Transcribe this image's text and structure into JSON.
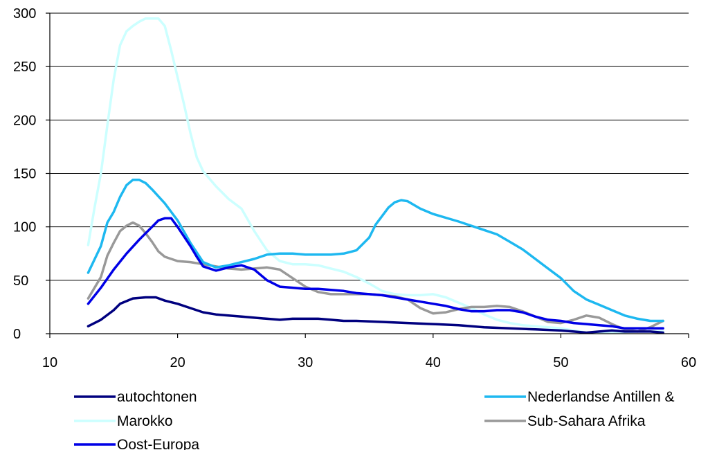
{
  "chart_data": {
    "type": "line",
    "title": "",
    "xlabel": "",
    "ylabel": "",
    "xlim": [
      10,
      60
    ],
    "ylim": [
      0,
      300
    ],
    "x_ticks": [
      10,
      20,
      30,
      40,
      50,
      60
    ],
    "y_ticks": [
      0,
      50,
      100,
      150,
      200,
      250,
      300
    ],
    "x_tick_labels": [
      "10",
      "20",
      "30",
      "40",
      "50",
      "60"
    ],
    "y_tick_labels": [
      "0",
      "50",
      "100",
      "150",
      "200",
      "250",
      "300"
    ],
    "grid": "horizontal",
    "legend_position": "bottom",
    "series": [
      {
        "name": "autochtonen",
        "color": "#00007f",
        "points": [
          [
            13,
            7
          ],
          [
            14,
            13
          ],
          [
            15,
            22
          ],
          [
            15.5,
            28
          ],
          [
            16.5,
            33
          ],
          [
            17.5,
            34
          ],
          [
            18.3,
            34
          ],
          [
            19,
            31
          ],
          [
            20,
            28
          ],
          [
            21,
            24
          ],
          [
            22,
            20
          ],
          [
            23,
            18
          ],
          [
            24,
            17
          ],
          [
            25,
            16
          ],
          [
            26,
            15
          ],
          [
            27,
            14
          ],
          [
            28,
            13
          ],
          [
            29,
            14
          ],
          [
            30,
            14
          ],
          [
            31,
            14
          ],
          [
            32,
            13
          ],
          [
            33,
            12
          ],
          [
            34,
            12
          ],
          [
            36,
            11
          ],
          [
            38,
            10
          ],
          [
            40,
            9
          ],
          [
            42,
            8
          ],
          [
            44,
            6
          ],
          [
            46,
            5
          ],
          [
            48,
            4
          ],
          [
            50,
            3
          ],
          [
            51,
            2
          ],
          [
            52,
            1
          ],
          [
            53,
            2
          ],
          [
            54,
            3
          ],
          [
            55,
            2
          ],
          [
            56,
            2
          ],
          [
            57,
            2
          ],
          [
            58,
            1
          ]
        ]
      },
      {
        "name": "Nederlandse Antillen &",
        "color": "#1eb8f0",
        "points": [
          [
            13,
            57
          ],
          [
            14,
            82
          ],
          [
            14.5,
            104
          ],
          [
            15,
            114
          ],
          [
            15.5,
            128
          ],
          [
            16,
            139
          ],
          [
            16.5,
            144
          ],
          [
            17,
            144
          ],
          [
            17.5,
            141
          ],
          [
            18,
            135
          ],
          [
            19,
            122
          ],
          [
            20,
            106
          ],
          [
            21,
            85
          ],
          [
            22,
            67
          ],
          [
            23,
            62
          ],
          [
            24,
            64
          ],
          [
            25,
            67
          ],
          [
            26,
            70
          ],
          [
            27,
            74
          ],
          [
            28,
            75
          ],
          [
            29,
            75
          ],
          [
            30,
            74
          ],
          [
            31,
            74
          ],
          [
            32,
            74
          ],
          [
            33,
            75
          ],
          [
            34,
            78
          ],
          [
            35,
            90
          ],
          [
            35.5,
            102
          ],
          [
            36,
            110
          ],
          [
            36.5,
            118
          ],
          [
            37,
            123
          ],
          [
            37.5,
            125
          ],
          [
            38,
            124
          ],
          [
            39,
            117
          ],
          [
            40,
            112
          ],
          [
            42,
            105
          ],
          [
            44,
            97
          ],
          [
            45,
            93
          ],
          [
            46,
            86
          ],
          [
            47,
            79
          ],
          [
            48,
            70
          ],
          [
            49,
            61
          ],
          [
            50,
            52
          ],
          [
            51,
            40
          ],
          [
            52,
            32
          ],
          [
            53,
            27
          ],
          [
            54,
            22
          ],
          [
            55,
            17
          ],
          [
            56,
            14
          ],
          [
            57,
            12
          ],
          [
            58,
            12
          ]
        ]
      },
      {
        "name": "Marokko",
        "color": "#ccffff",
        "points": [
          [
            13,
            83
          ],
          [
            13.5,
            118
          ],
          [
            14,
            150
          ],
          [
            14.5,
            195
          ],
          [
            15,
            238
          ],
          [
            15.5,
            270
          ],
          [
            16,
            283
          ],
          [
            16.5,
            288
          ],
          [
            17,
            292
          ],
          [
            17.5,
            295
          ],
          [
            18,
            295
          ],
          [
            18.5,
            295
          ],
          [
            19,
            288
          ],
          [
            19.5,
            265
          ],
          [
            20,
            240
          ],
          [
            20.5,
            215
          ],
          [
            21,
            188
          ],
          [
            21.5,
            165
          ],
          [
            22,
            152
          ],
          [
            23,
            138
          ],
          [
            24,
            126
          ],
          [
            25,
            117
          ],
          [
            26,
            96
          ],
          [
            27,
            78
          ],
          [
            28,
            68
          ],
          [
            29,
            65
          ],
          [
            30,
            65
          ],
          [
            31,
            64
          ],
          [
            32,
            61
          ],
          [
            33,
            58
          ],
          [
            34,
            53
          ],
          [
            35,
            47
          ],
          [
            36,
            40
          ],
          [
            37,
            37
          ],
          [
            38,
            36
          ],
          [
            39,
            36
          ],
          [
            40,
            37
          ],
          [
            41,
            34
          ],
          [
            42,
            29
          ],
          [
            43,
            24
          ],
          [
            44,
            18
          ],
          [
            45,
            13
          ],
          [
            46,
            10
          ],
          [
            47,
            8
          ],
          [
            48,
            7
          ],
          [
            50,
            5
          ],
          [
            51,
            3
          ],
          [
            52,
            1
          ],
          [
            53,
            1
          ],
          [
            54,
            1
          ],
          [
            56,
            2
          ],
          [
            58,
            2
          ]
        ]
      },
      {
        "name": "Sub-Sahara Afrika",
        "color": "#999999",
        "points": [
          [
            13,
            33
          ],
          [
            14,
            53
          ],
          [
            14.5,
            73
          ],
          [
            15,
            85
          ],
          [
            15.5,
            96
          ],
          [
            16,
            101
          ],
          [
            16.5,
            104
          ],
          [
            17,
            101
          ],
          [
            17.5,
            94
          ],
          [
            18,
            86
          ],
          [
            18.5,
            77
          ],
          [
            19,
            72
          ],
          [
            20,
            68
          ],
          [
            21,
            67
          ],
          [
            22,
            65
          ],
          [
            23,
            63
          ],
          [
            24,
            61
          ],
          [
            25,
            60
          ],
          [
            26,
            61
          ],
          [
            27,
            62
          ],
          [
            28,
            60
          ],
          [
            29,
            52
          ],
          [
            30,
            44
          ],
          [
            31,
            39
          ],
          [
            32,
            37
          ],
          [
            33,
            37
          ],
          [
            34,
            37
          ],
          [
            35,
            37
          ],
          [
            36,
            36
          ],
          [
            37,
            35
          ],
          [
            38,
            32
          ],
          [
            39,
            24
          ],
          [
            40,
            19
          ],
          [
            41,
            20
          ],
          [
            42,
            23
          ],
          [
            43,
            25
          ],
          [
            44,
            25
          ],
          [
            45,
            26
          ],
          [
            46,
            25
          ],
          [
            47,
            21
          ],
          [
            48,
            16
          ],
          [
            49,
            11
          ],
          [
            50,
            10
          ],
          [
            51,
            13
          ],
          [
            52,
            17
          ],
          [
            53,
            15
          ],
          [
            54,
            9
          ],
          [
            55,
            4
          ],
          [
            56,
            2
          ],
          [
            57,
            6
          ],
          [
            58,
            12
          ]
        ]
      },
      {
        "name": "Oost-Europa",
        "color": "#0000e6",
        "points": [
          [
            13,
            28
          ],
          [
            14,
            43
          ],
          [
            15,
            60
          ],
          [
            16,
            75
          ],
          [
            17,
            88
          ],
          [
            18,
            100
          ],
          [
            18.5,
            106
          ],
          [
            19,
            108
          ],
          [
            19.5,
            108
          ],
          [
            20,
            100
          ],
          [
            21,
            82
          ],
          [
            21.5,
            72
          ],
          [
            22,
            63
          ],
          [
            23,
            59
          ],
          [
            24,
            62
          ],
          [
            25,
            64
          ],
          [
            26,
            60
          ],
          [
            27,
            50
          ],
          [
            28,
            44
          ],
          [
            29,
            43
          ],
          [
            30,
            42
          ],
          [
            31,
            42
          ],
          [
            32,
            41
          ],
          [
            33,
            40
          ],
          [
            34,
            38
          ],
          [
            35,
            37
          ],
          [
            36,
            36
          ],
          [
            37,
            34
          ],
          [
            38,
            32
          ],
          [
            39,
            30
          ],
          [
            40,
            28
          ],
          [
            41,
            26
          ],
          [
            42,
            23
          ],
          [
            43,
            21
          ],
          [
            44,
            21
          ],
          [
            45,
            22
          ],
          [
            46,
            22
          ],
          [
            47,
            20
          ],
          [
            48,
            16
          ],
          [
            49,
            13
          ],
          [
            50,
            12
          ],
          [
            51,
            10
          ],
          [
            52,
            9
          ],
          [
            53,
            8
          ],
          [
            54,
            7
          ],
          [
            55,
            5
          ],
          [
            56,
            5
          ],
          [
            57,
            5
          ],
          [
            58,
            5
          ]
        ]
      }
    ]
  }
}
